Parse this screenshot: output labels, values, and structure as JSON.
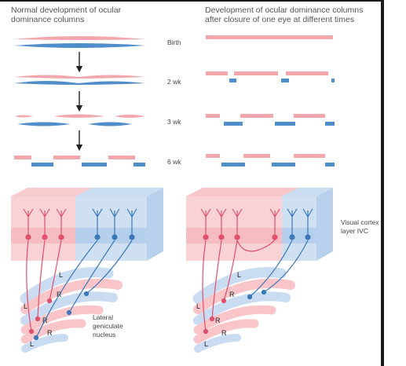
{
  "colors": {
    "left_eye": "#f2a7ac",
    "right_eye": "#4f8ecb",
    "left_tint": "#f9d2d5",
    "right_tint": "#c9dcf1",
    "neuron_left": "#e0506a",
    "neuron_right": "#3a78b8",
    "frame": "#1a1a1a"
  },
  "left_panel": {
    "title_line1": "Normal development of ocular",
    "title_line2": "dominance columns"
  },
  "right_panel": {
    "title_line1": "Development of ocular dominance columns",
    "title_line2": "after closure of one eye at different times"
  },
  "time_labels": [
    "Birth",
    "2 wk",
    "3 wk",
    "6 wk"
  ],
  "cortex_label_line1": "Visual cortex",
  "cortex_label_line2": "layer IVC",
  "lgn_label_line1": "Lateral",
  "lgn_label_line2": "geniculate",
  "lgn_label_line3": "nucleus",
  "lgn_layers_left": [
    "L",
    "R",
    "L",
    "R",
    "R",
    "L"
  ],
  "lgn_layers_right": [
    "L",
    "R",
    "L",
    "R",
    "R",
    "L"
  ]
}
